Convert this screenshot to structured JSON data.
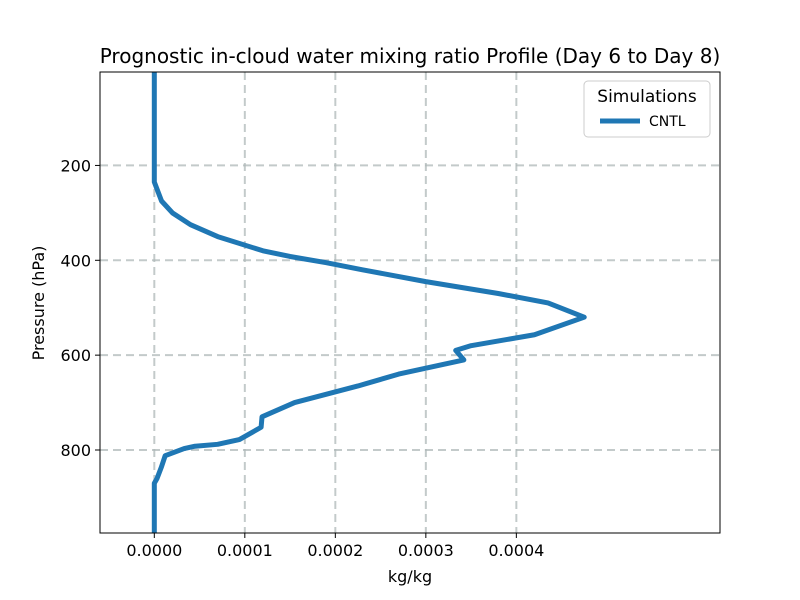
{
  "chart_data": {
    "type": "line",
    "title": "Prognostic in-cloud water mixing ratio Profile (Day 6 to Day 8)",
    "xlabel": "kg/kg",
    "ylabel": "Pressure (hPa)",
    "xlim": [
      -6e-05,
      0.000625
    ],
    "ylim": [
      975,
      3
    ],
    "y_inverted": true,
    "grid": true,
    "xticks": [
      0,
      0.0001,
      0.0002,
      0.0003,
      0.0004
    ],
    "xtick_labels": [
      "0.0000",
      "0.0001",
      "0.0002",
      "0.0003",
      "0.0004"
    ],
    "yticks": [
      200,
      400,
      600,
      800
    ],
    "ytick_labels": [
      "200",
      "400",
      "600",
      "800"
    ],
    "legend": {
      "title": "Simulations",
      "placement": "top-right"
    },
    "series": [
      {
        "name": "CNTL",
        "color": "#1f77b4",
        "x": [
          0,
          0,
          0,
          0,
          1e-06,
          8e-06,
          2e-05,
          4e-05,
          7e-05,
          0.00012,
          0.00015,
          0.00019,
          0.00023,
          0.0003,
          0.00038,
          0.000435,
          0.000475,
          0.00042,
          0.00035,
          0.000333,
          0.000342,
          0.00027,
          0.000225,
          0.000155,
          0.000119,
          0.000118,
          9.4e-05,
          7e-05,
          4.5e-05,
          3.3e-05,
          1.2e-05,
          8e-06,
          3e-06,
          0,
          0,
          0
        ],
        "y": [
          3,
          100,
          200,
          235,
          240,
          275,
          300,
          325,
          350,
          380,
          392,
          405,
          420,
          445,
          470,
          490,
          520,
          557,
          580,
          590,
          610,
          640,
          665,
          700,
          730,
          752,
          778,
          788,
          792,
          797,
          812,
          835,
          860,
          870,
          900,
          975
        ]
      }
    ]
  }
}
